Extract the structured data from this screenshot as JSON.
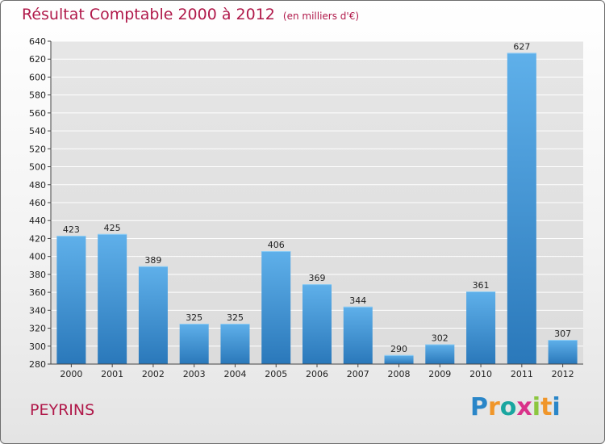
{
  "chart_data": {
    "type": "bar",
    "title": "Résultat Comptable 2000 à 2012",
    "unit_note": "(en milliers d'€)",
    "categories": [
      "2000",
      "2001",
      "2002",
      "2003",
      "2004",
      "2005",
      "2006",
      "2007",
      "2008",
      "2009",
      "2010",
      "2011",
      "2012"
    ],
    "values": [
      423,
      425,
      389,
      325,
      325,
      406,
      369,
      344,
      290,
      302,
      361,
      627,
      307
    ],
    "ylim": [
      280,
      640
    ],
    "yticks": [
      280,
      300,
      320,
      340,
      360,
      380,
      400,
      420,
      440,
      460,
      480,
      500,
      520,
      540,
      560,
      580,
      600,
      620,
      640
    ],
    "grid": true,
    "xlabel": "",
    "ylabel": ""
  },
  "location": "PEYRINS",
  "logo": {
    "letters": [
      "P",
      "r",
      "o",
      "x",
      "i",
      "t",
      "i"
    ],
    "colors": [
      "#2a86c8",
      "#f0962a",
      "#1aa6a0",
      "#d9328a",
      "#8cc63f",
      "#f0962a",
      "#2a86c8"
    ]
  },
  "colors": {
    "accent": "#b0194a",
    "bar_top": "#5fb0ea",
    "bar_bottom": "#2a78ba"
  }
}
